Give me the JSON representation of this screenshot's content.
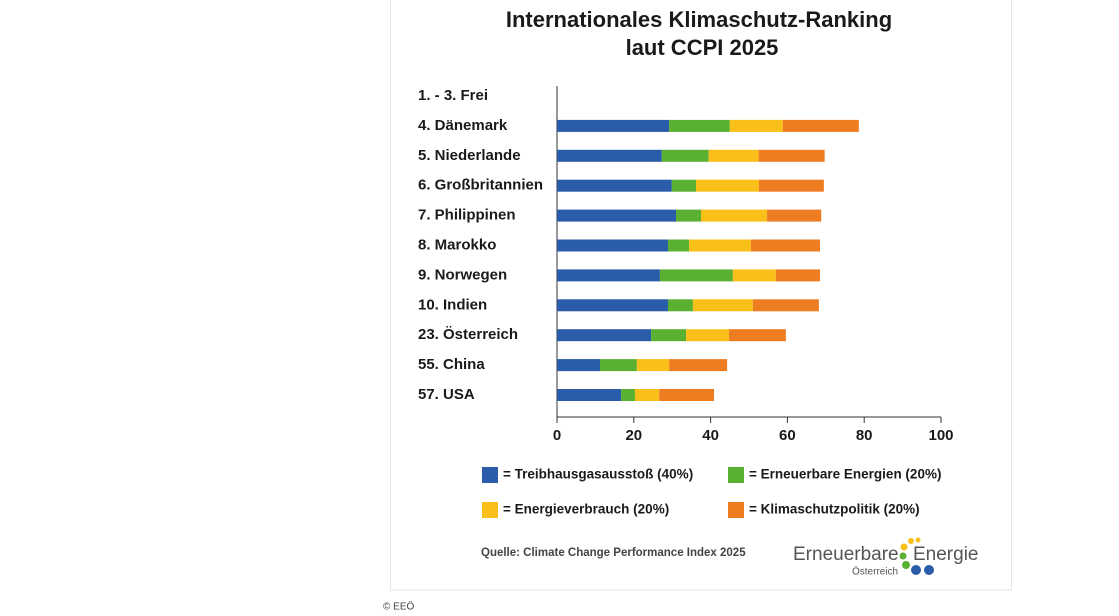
{
  "chart_data": {
    "type": "stacked-bar-horizontal",
    "title": [
      "Internationales Klimaschutz-Ranking",
      "laut CCPI 2025"
    ],
    "categories": [
      "1. - 3. Frei",
      "4. Dänemark",
      "5. Niederlande",
      "6. Großbritannien",
      "7. Philippinen",
      "8. Marokko",
      "9. Norwegen",
      "10. Indien",
      "23. Österreich",
      "55. China",
      "57. USA"
    ],
    "series": [
      {
        "name": "= Treibhausgasausstoß (40%)",
        "color": "#2a5caa",
        "values": [
          null,
          29.2,
          27.3,
          29.9,
          31.0,
          28.9,
          26.8,
          28.9,
          24.5,
          11.2,
          16.7
        ]
      },
      {
        "name": "= Erneuerbare Energien (20%)",
        "color": "#5ab030",
        "values": [
          null,
          15.8,
          12.2,
          6.3,
          6.5,
          5.5,
          19.0,
          6.5,
          9.1,
          9.6,
          3.6
        ]
      },
      {
        "name": "= Energieverbrauch (20%)",
        "color": "#fbbf1a",
        "values": [
          null,
          13.8,
          13.0,
          16.4,
          17.2,
          16.1,
          11.2,
          15.6,
          11.2,
          8.4,
          6.3
        ]
      },
      {
        "name": "= Klimaschutzpolitik (20%)",
        "color": "#ee7d22",
        "values": [
          null,
          19.8,
          17.2,
          16.9,
          14.1,
          18.0,
          11.5,
          17.2,
          14.8,
          15.1,
          14.3
        ]
      }
    ],
    "xlim": [
      0,
      100
    ],
    "xticks": [
      0,
      20,
      40,
      60,
      80,
      100
    ],
    "source": "Quelle: Climate Change Performance Index 2025",
    "logo": [
      "Erneuerbare",
      "Energie",
      "Österreich"
    ]
  },
  "credit": "© EEÖ"
}
